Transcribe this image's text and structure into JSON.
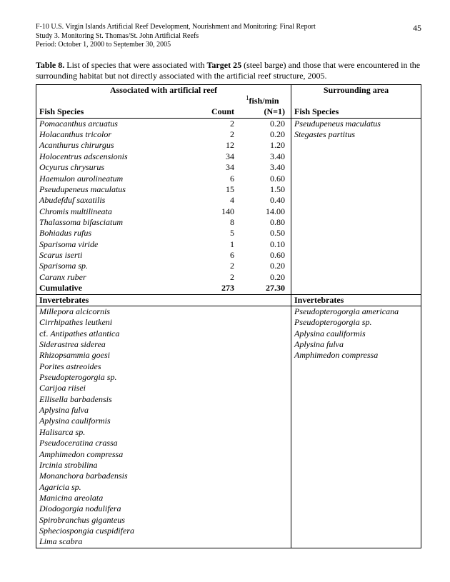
{
  "header": {
    "line1": "F-10 U.S. Virgin Islands Artificial Reef Development, Nourishment and Monitoring: Final Report",
    "line2": "Study 3.  Monitoring St. Thomas/St. John Artificial Reefs",
    "line3": "Period:  October 1, 2000 to September 30, 2005",
    "page": "45"
  },
  "caption": {
    "lead": "Table 8.  ",
    "body1": "List of species that were associated with ",
    "target": "Target 25",
    "body2": " (steel barge) and those that were encountered in the surrounding habitat but not directly associated with the artificial reef structure, 2005."
  },
  "heads": {
    "assoc": "Associated with artificial reef",
    "surround": "Surrounding area",
    "fish": "Fish Species",
    "count": "Count",
    "rate_sup": "1",
    "rate1": "fish/min",
    "rate2": "(N=1)",
    "fish2": "Fish Species",
    "inv": "Invertebrates",
    "inv2": "Invertebrates",
    "cum": "Cumulative"
  },
  "fish": [
    {
      "sp": "Pomacanthus arcuatus",
      "c": "2",
      "r": "0.20"
    },
    {
      "sp": "Holacanthus tricolor",
      "c": "2",
      "r": "0.20"
    },
    {
      "sp": "Acanthurus chirurgus",
      "c": "12",
      "r": "1.20"
    },
    {
      "sp": "Holocentrus adscensionis",
      "c": "34",
      "r": "3.40"
    },
    {
      "sp": "Ocyurus chrysurus",
      "c": "34",
      "r": "3.40"
    },
    {
      "sp": "Haemulon aurolineatum",
      "c": "6",
      "r": "0.60"
    },
    {
      "sp": "Pseudupeneus maculatus",
      "c": "15",
      "r": "1.50"
    },
    {
      "sp": "Abudefduf saxatilis",
      "c": "4",
      "r": "0.40"
    },
    {
      "sp": "Chromis multilineata",
      "c": "140",
      "r": "14.00"
    },
    {
      "sp": "Thalassoma bifasciatum",
      "c": "8",
      "r": "0.80"
    },
    {
      "sp": "Bohiadus rufus",
      "c": "5",
      "r": "0.50"
    },
    {
      "sp": "Sparisoma viride",
      "c": "1",
      "r": "0.10"
    },
    {
      "sp": "Scarus iserti",
      "c": "6",
      "r": "0.60"
    },
    {
      "sp": "Sparisoma sp.",
      "c": "2",
      "r": "0.20"
    },
    {
      "sp": "Caranx ruber",
      "c": "2",
      "r": "0.20"
    }
  ],
  "cum": {
    "c": "273",
    "r": "27.30"
  },
  "surround_fish": [
    "Pseudupeneus maculatus",
    "Stegastes partitus"
  ],
  "inv_assoc": [
    {
      "t": "Millepora alcicornis",
      "i": true
    },
    {
      "t": "Cirrhipathes leutkeni",
      "i": true
    },
    {
      "t": "cf. Antipathes atlantica",
      "i": false,
      "mix": true
    },
    {
      "t": "Siderastrea siderea",
      "i": true
    },
    {
      "t": "Rhizopsammia goesi",
      "i": true
    },
    {
      "t": "Porites astreoides",
      "i": true
    },
    {
      "t": "Pseudopterogorgia sp.",
      "i": true
    },
    {
      "t": "Carijoa riisei",
      "i": true
    },
    {
      "t": "Ellisella barbadensis",
      "i": true
    },
    {
      "t": "Aplysina fulva",
      "i": true
    },
    {
      "t": "Aplysina cauliformis",
      "i": true
    },
    {
      "t": "Halisarca sp.",
      "i": true
    },
    {
      "t": "Pseudoceratina crassa",
      "i": true
    },
    {
      "t": "Amphimedon compressa",
      "i": true
    },
    {
      "t": "Ircinia strobilina",
      "i": true
    },
    {
      "t": "Monanchora barbadensis",
      "i": true
    },
    {
      "t": "Agaricia sp.",
      "i": true
    },
    {
      "t": "Manicina areolata",
      "i": true
    },
    {
      "t": "Diodogorgia nodulifera",
      "i": true
    },
    {
      "t": "Spirobranchus giganteus",
      "i": true
    },
    {
      "t": "Spheciospongia cuspidifera",
      "i": true
    },
    {
      "t": "Lima scabra",
      "i": true
    }
  ],
  "inv_surround": [
    "Pseudopterogorgia americana",
    "Pseudopterogorgia sp.",
    "Aplysina cauliformis",
    "Aplysina fulva",
    "Amphimedon compressa"
  ]
}
